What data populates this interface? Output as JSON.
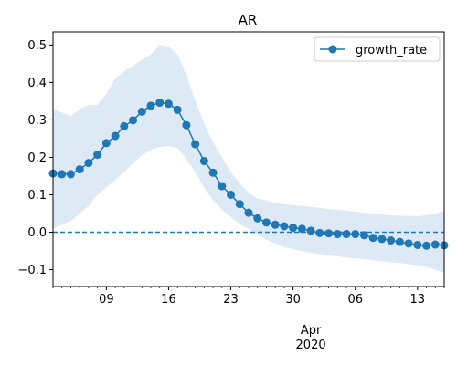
{
  "chart_data": {
    "type": "line",
    "title": "AR",
    "xlabel": "",
    "ylabel": "",
    "x_start": "2020-03-03",
    "x_end": "2020-04-16",
    "ylim": [
      -0.145,
      0.535
    ],
    "yticks": [
      -0.1,
      0.0,
      0.1,
      0.2,
      0.3,
      0.4,
      0.5
    ],
    "ytick_labels": [
      "−0.1",
      "0.0",
      "0.1",
      "0.2",
      "0.3",
      "0.4",
      "0.5"
    ],
    "xticks": [
      {
        "date": "2020-03-09",
        "label": "09"
      },
      {
        "date": "2020-03-16",
        "label": "16"
      },
      {
        "date": "2020-03-23",
        "label": "23"
      },
      {
        "date": "2020-03-30",
        "label": "30"
      },
      {
        "date": "2020-04-06",
        "label": "06"
      },
      {
        "date": "2020-04-13",
        "label": "13"
      }
    ],
    "x_major_label": {
      "date": "2020-04-01",
      "line1": "Apr",
      "line2": "2020"
    },
    "reference_line": {
      "y": 0.0,
      "style": "dashed"
    },
    "legend": {
      "position": "top-right",
      "entries": [
        "growth_rate"
      ]
    },
    "colors": {
      "line": "#1f77b4",
      "band": "#dde9f5"
    },
    "series": [
      {
        "name": "growth_rate",
        "x": [
          "2020-03-03",
          "2020-03-04",
          "2020-03-05",
          "2020-03-06",
          "2020-03-07",
          "2020-03-08",
          "2020-03-09",
          "2020-03-10",
          "2020-03-11",
          "2020-03-12",
          "2020-03-13",
          "2020-03-14",
          "2020-03-15",
          "2020-03-16",
          "2020-03-17",
          "2020-03-18",
          "2020-03-19",
          "2020-03-20",
          "2020-03-21",
          "2020-03-22",
          "2020-03-23",
          "2020-03-24",
          "2020-03-25",
          "2020-03-26",
          "2020-03-27",
          "2020-03-28",
          "2020-03-29",
          "2020-03-30",
          "2020-03-31",
          "2020-04-01",
          "2020-04-02",
          "2020-04-03",
          "2020-04-04",
          "2020-04-05",
          "2020-04-06",
          "2020-04-07",
          "2020-04-08",
          "2020-04-09",
          "2020-04-10",
          "2020-04-11",
          "2020-04-12",
          "2020-04-13",
          "2020-04-14",
          "2020-04-15",
          "2020-04-16"
        ],
        "y": [
          0.157,
          0.155,
          0.155,
          0.168,
          0.185,
          0.207,
          0.238,
          0.257,
          0.283,
          0.299,
          0.322,
          0.338,
          0.346,
          0.343,
          0.327,
          0.286,
          0.235,
          0.19,
          0.159,
          0.123,
          0.1,
          0.075,
          0.052,
          0.037,
          0.026,
          0.02,
          0.016,
          0.012,
          0.009,
          0.004,
          -0.002,
          -0.003,
          -0.005,
          -0.005,
          -0.005,
          -0.008,
          -0.015,
          -0.018,
          -0.022,
          -0.026,
          -0.03,
          -0.034,
          -0.036,
          -0.033,
          -0.035
        ],
        "lower": [
          0.01,
          0.02,
          0.03,
          0.05,
          0.07,
          0.1,
          0.12,
          0.14,
          0.16,
          0.185,
          0.205,
          0.22,
          0.228,
          0.23,
          0.225,
          0.195,
          0.16,
          0.12,
          0.085,
          0.06,
          0.04,
          0.022,
          0.008,
          -0.005,
          -0.02,
          -0.03,
          -0.04,
          -0.045,
          -0.05,
          -0.055,
          -0.058,
          -0.062,
          -0.065,
          -0.068,
          -0.07,
          -0.072,
          -0.075,
          -0.078,
          -0.08,
          -0.082,
          -0.085,
          -0.088,
          -0.092,
          -0.1,
          -0.108
        ],
        "upper": [
          0.33,
          0.32,
          0.31,
          0.33,
          0.34,
          0.34,
          0.37,
          0.41,
          0.43,
          0.445,
          0.46,
          0.475,
          0.5,
          0.495,
          0.475,
          0.42,
          0.35,
          0.29,
          0.24,
          0.2,
          0.16,
          0.13,
          0.105,
          0.09,
          0.085,
          0.078,
          0.075,
          0.072,
          0.07,
          0.068,
          0.065,
          0.062,
          0.06,
          0.058,
          0.055,
          0.052,
          0.05,
          0.047,
          0.045,
          0.044,
          0.044,
          0.043,
          0.045,
          0.05,
          0.057
        ]
      }
    ]
  }
}
